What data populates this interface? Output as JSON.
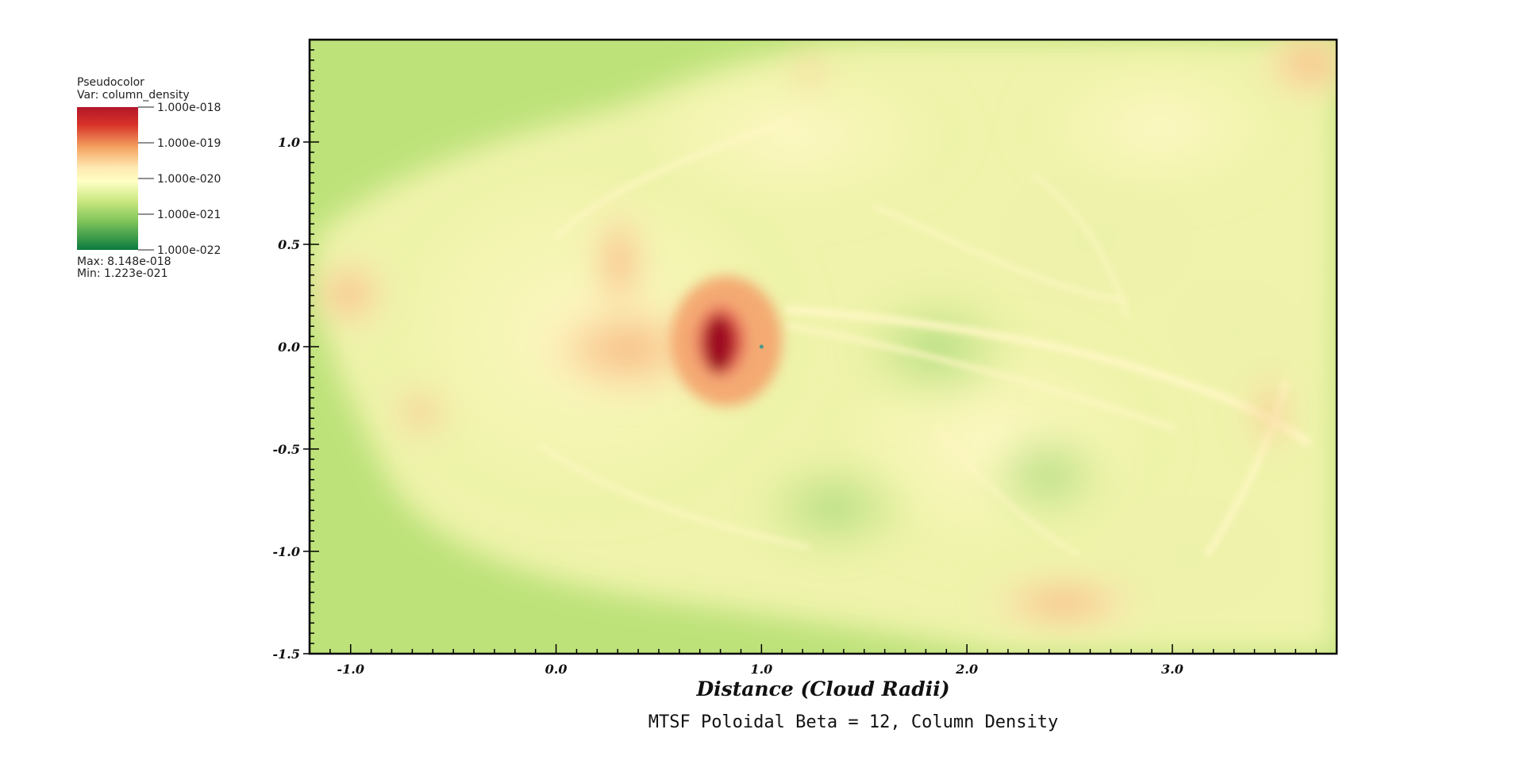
{
  "chart_data": {
    "type": "heatmap",
    "title": "MTSF Poloidal Beta = 12, Column Density",
    "xlabel": "Distance (Cloud Radii)",
    "ylabel": "",
    "xlim": [
      -1.2,
      3.8
    ],
    "ylim": [
      -1.5,
      1.5
    ],
    "x_ticks": [
      "-1.0",
      "0.0",
      "1.0",
      "2.0",
      "3.0"
    ],
    "y_ticks": [
      "1.0",
      "0.5",
      "0.0",
      "-0.5",
      "-1.0",
      "-1.5"
    ],
    "colorbar": {
      "plot_type": "Pseudocolor",
      "variable": "Var: column_density",
      "scale": "log",
      "ticks": [
        "1.000e-018",
        "1.000e-019",
        "1.000e-020",
        "1.000e-021",
        "1.000e-022"
      ],
      "max_label": "Max:  8.148e-018",
      "min_label": "Min:  1.223e-021",
      "colors": [
        "#b2182b",
        "#ef8a62",
        "#fddbc7",
        "#ffffbf",
        "#d9ef8b",
        "#91cf60",
        "#1a9850",
        "#006837"
      ]
    },
    "background_color": "#bde27a",
    "peak": {
      "x": 1.0,
      "y": 0.0,
      "value": "8.148e-018"
    }
  }
}
